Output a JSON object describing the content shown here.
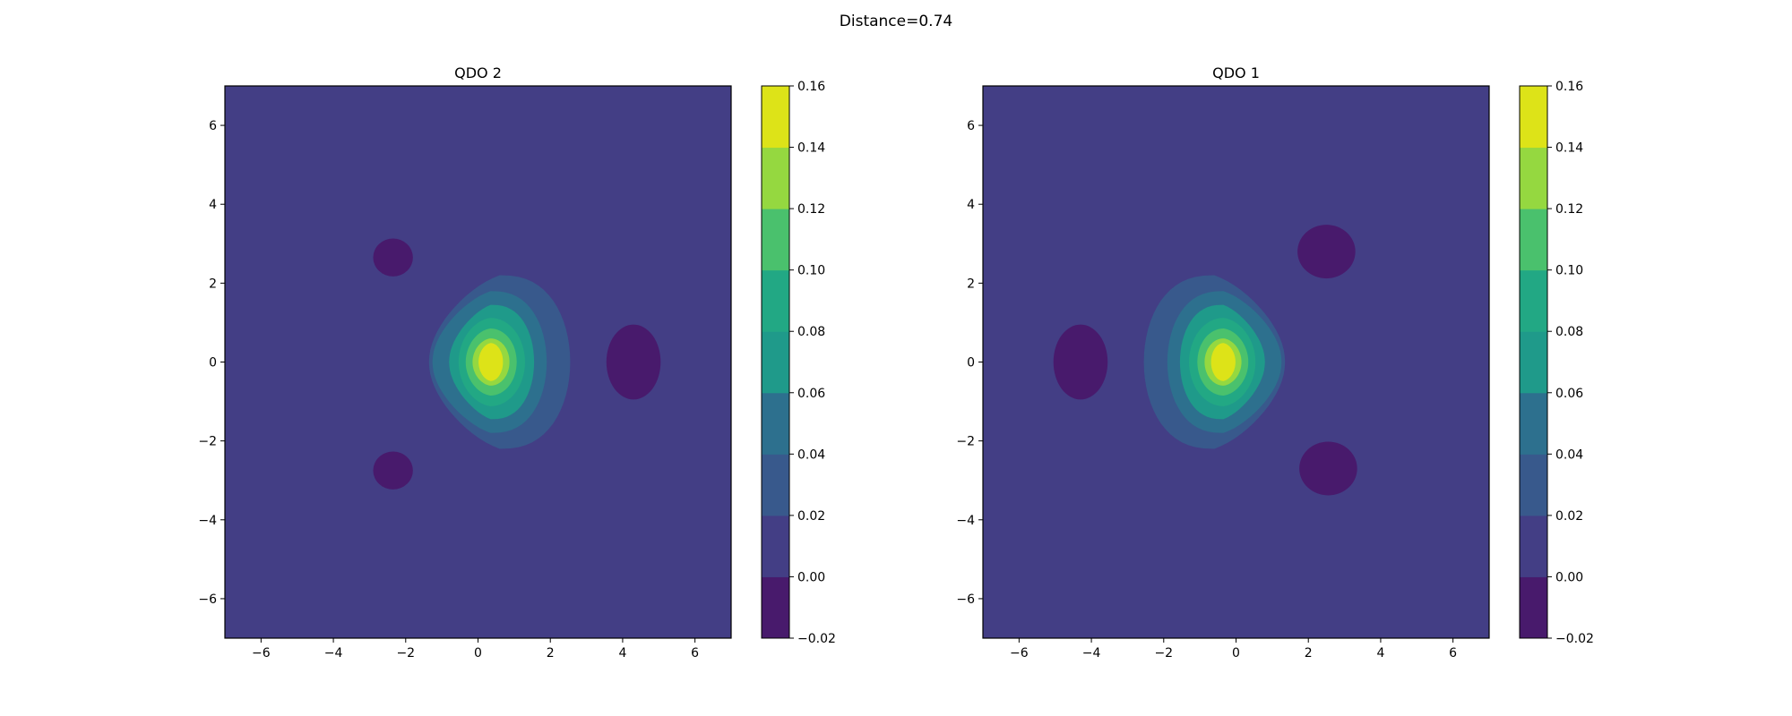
{
  "figure": {
    "suptitle": "Distance=0.74"
  },
  "chart_data": [
    {
      "type": "heatmap",
      "subtype": "filled-contour",
      "title": "QDO 2",
      "xlabel": "",
      "ylabel": "",
      "xlim": [
        -7,
        7
      ],
      "ylim": [
        -7,
        7
      ],
      "xticks": [
        -6,
        -4,
        -2,
        0,
        2,
        4,
        6
      ],
      "yticks": [
        -6,
        -4,
        -2,
        0,
        2,
        4,
        6
      ],
      "grid": false,
      "colorbar": {
        "range": [
          -0.02,
          0.16
        ],
        "levels": [
          -0.02,
          0.0,
          0.02,
          0.04,
          0.06,
          0.08,
          0.1,
          0.12,
          0.14,
          0.16
        ],
        "ticks": [
          -0.02,
          0.0,
          0.02,
          0.04,
          0.06,
          0.08,
          0.1,
          0.12,
          0.14,
          0.16
        ],
        "colormap": "viridis"
      },
      "features": [
        {
          "kind": "peak",
          "x": 0.35,
          "y": 0.0,
          "value": 0.155,
          "shape": "triangular, pointing left"
        },
        {
          "kind": "negative-lobe",
          "x": 4.3,
          "y": 0.0,
          "value": -0.005
        },
        {
          "kind": "negative-lobe",
          "x": -2.35,
          "y": 2.65,
          "value": -0.005
        },
        {
          "kind": "negative-lobe",
          "x": -2.35,
          "y": -2.75,
          "value": -0.005
        }
      ]
    },
    {
      "type": "heatmap",
      "subtype": "filled-contour",
      "title": "QDO 1",
      "xlabel": "",
      "ylabel": "",
      "xlim": [
        -7,
        7
      ],
      "ylim": [
        -7,
        7
      ],
      "xticks": [
        -6,
        -4,
        -2,
        0,
        2,
        4,
        6
      ],
      "yticks": [
        -6,
        -4,
        -2,
        0,
        2,
        4,
        6
      ],
      "grid": false,
      "colorbar": {
        "range": [
          -0.02,
          0.16
        ],
        "levels": [
          -0.02,
          0.0,
          0.02,
          0.04,
          0.06,
          0.08,
          0.1,
          0.12,
          0.14,
          0.16
        ],
        "ticks": [
          -0.02,
          0.0,
          0.02,
          0.04,
          0.06,
          0.08,
          0.1,
          0.12,
          0.14,
          0.16
        ],
        "colormap": "viridis"
      },
      "features": [
        {
          "kind": "peak",
          "x": -0.35,
          "y": 0.0,
          "value": 0.155,
          "shape": "triangular, pointing right"
        },
        {
          "kind": "negative-lobe",
          "x": -4.3,
          "y": 0.0,
          "value": -0.005
        },
        {
          "kind": "negative-lobe",
          "x": 2.5,
          "y": 2.8,
          "value": -0.005
        },
        {
          "kind": "negative-lobe",
          "x": 2.55,
          "y": -2.7,
          "value": -0.005
        }
      ]
    }
  ]
}
